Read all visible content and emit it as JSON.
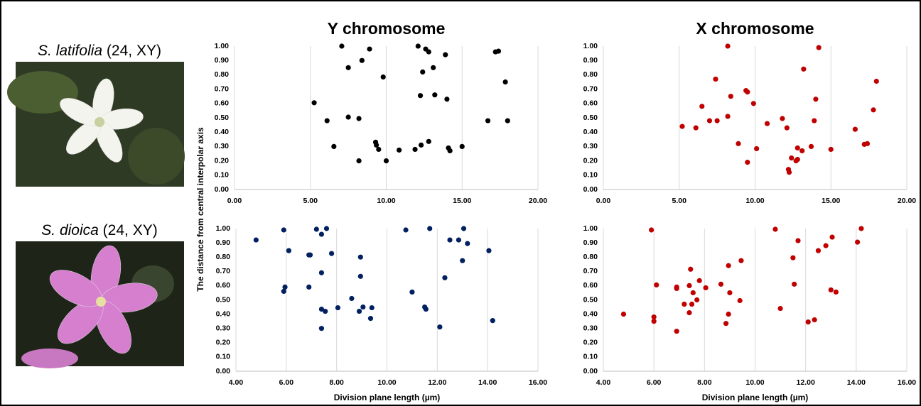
{
  "species": [
    {
      "name": "S. latifolia",
      "note": "(24, XY)"
    },
    {
      "name": "S. dioica",
      "note": "(24, XY)"
    }
  ],
  "chart_data": [
    {
      "type": "scatter",
      "title": "Y chromosome",
      "ylabel": "The distance from central interpolar axis",
      "color": "#000000",
      "xgrid": true,
      "xlim": [
        0,
        20
      ],
      "ylim": [
        0,
        1
      ],
      "xticks": [
        {
          "value": 0,
          "label": "0.00"
        },
        {
          "value": 5,
          "label": "5.00"
        },
        {
          "value": 10,
          "label": "10.00"
        },
        {
          "value": 15,
          "label": "15.00"
        },
        {
          "value": 20,
          "label": "20.00"
        }
      ],
      "yticks": [
        {
          "value": 0,
          "label": "0.00"
        },
        {
          "value": 0.1,
          "label": "0.10"
        },
        {
          "value": 0.2,
          "label": "0.20"
        },
        {
          "value": 0.3,
          "label": "0.30"
        },
        {
          "value": 0.4,
          "label": "0.40"
        },
        {
          "value": 0.5,
          "label": "0.50"
        },
        {
          "value": 0.6,
          "label": "0.60"
        },
        {
          "value": 0.7,
          "label": "0.70"
        },
        {
          "value": 0.8,
          "label": "0.80"
        },
        {
          "value": 0.9,
          "label": "0.90"
        },
        {
          "value": 1,
          "label": "1.00"
        }
      ],
      "x": [
        7.07,
        8.9,
        12.1,
        12.6,
        12.8,
        13.9,
        17.2,
        17.4,
        7.5,
        8.4,
        13.1,
        12.4,
        9.8,
        17.85,
        12.25,
        13.2,
        14.0,
        5.25,
        6.1,
        7.5,
        8.2,
        16.7,
        18.0,
        6.55,
        9.3,
        9.35,
        9.5,
        8.2,
        10.0,
        10.85,
        11.9,
        12.3,
        12.8,
        14.1,
        14.2,
        15.0
      ],
      "values": [
        1.0,
        0.98,
        1.0,
        0.98,
        0.96,
        0.94,
        0.96,
        0.965,
        0.85,
        0.9,
        0.85,
        0.82,
        0.785,
        0.75,
        0.655,
        0.66,
        0.63,
        0.605,
        0.48,
        0.505,
        0.495,
        0.48,
        0.48,
        0.3,
        0.33,
        0.31,
        0.28,
        0.2,
        0.2,
        0.275,
        0.28,
        0.31,
        0.335,
        0.29,
        0.27,
        0.3
      ]
    },
    {
      "type": "scatter",
      "title": "X chromosome",
      "color": "#c00000",
      "xgrid": true,
      "xlim": [
        0,
        20
      ],
      "ylim": [
        0,
        1
      ],
      "xticks": [
        {
          "value": 0,
          "label": "0.00"
        },
        {
          "value": 5,
          "label": "5.00"
        },
        {
          "value": 10,
          "label": "10.00"
        },
        {
          "value": 15,
          "label": "15.00"
        },
        {
          "value": 20,
          "label": "20.00"
        }
      ],
      "yticks": [
        {
          "value": 0,
          "label": "0.00"
        },
        {
          "value": 0.1,
          "label": "0.10"
        },
        {
          "value": 0.2,
          "label": "0.20"
        },
        {
          "value": 0.3,
          "label": "0.30"
        },
        {
          "value": 0.4,
          "label": "0.40"
        },
        {
          "value": 0.5,
          "label": "0.50"
        },
        {
          "value": 0.6,
          "label": "0.60"
        },
        {
          "value": 0.7,
          "label": "0.70"
        },
        {
          "value": 0.8,
          "label": "0.80"
        },
        {
          "value": 0.9,
          "label": "0.90"
        },
        {
          "value": 1,
          "label": "1.00"
        }
      ],
      "x": [
        8.2,
        14.2,
        7.4,
        13.2,
        18.0,
        9.4,
        9.5,
        8.4,
        14.0,
        6.5,
        9.9,
        17.8,
        5.2,
        6.1,
        7.0,
        7.5,
        8.2,
        10.8,
        11.8,
        12.1,
        13.9,
        16.6,
        8.9,
        10.1,
        9.5,
        12.4,
        12.7,
        12.8,
        12.8,
        13.1,
        13.7,
        15.0,
        17.2,
        17.4,
        12.2,
        12.25
      ],
      "values": [
        1.0,
        0.99,
        0.77,
        0.84,
        0.755,
        0.69,
        0.68,
        0.65,
        0.63,
        0.58,
        0.6,
        0.555,
        0.44,
        0.43,
        0.48,
        0.48,
        0.51,
        0.46,
        0.495,
        0.43,
        0.48,
        0.42,
        0.32,
        0.285,
        0.19,
        0.22,
        0.2,
        0.21,
        0.29,
        0.27,
        0.3,
        0.28,
        0.315,
        0.32,
        0.14,
        0.12
      ]
    },
    {
      "type": "scatter",
      "xlabel": "Division plane length (µm)",
      "color": "#002060",
      "xgrid": true,
      "xlim": [
        4,
        16
      ],
      "ylim": [
        0,
        1
      ],
      "xticks": [
        {
          "value": 4,
          "label": "4.00"
        },
        {
          "value": 6,
          "label": "6.00"
        },
        {
          "value": 8,
          "label": "8.00"
        },
        {
          "value": 10,
          "label": "10.00"
        },
        {
          "value": 12,
          "label": "12.00"
        },
        {
          "value": 14,
          "label": "14.00"
        },
        {
          "value": 16,
          "label": "16.00"
        }
      ],
      "yticks": [
        {
          "value": 0,
          "label": "0.00"
        },
        {
          "value": 0.1,
          "label": "0.10"
        },
        {
          "value": 0.2,
          "label": "0.20"
        },
        {
          "value": 0.3,
          "label": "0.30"
        },
        {
          "value": 0.4,
          "label": "0.40"
        },
        {
          "value": 0.5,
          "label": "0.50"
        },
        {
          "value": 0.6,
          "label": "0.60"
        },
        {
          "value": 0.7,
          "label": "0.70"
        },
        {
          "value": 0.8,
          "label": "0.80"
        },
        {
          "value": 0.9,
          "label": "0.90"
        },
        {
          "value": 1,
          "label": "1.00"
        }
      ],
      "x": [
        4.8,
        5.9,
        6.1,
        5.95,
        5.9,
        6.9,
        6.95,
        6.9,
        7.2,
        7.4,
        7.6,
        7.8,
        7.4,
        7.4,
        7.55,
        7.4,
        8.05,
        8.6,
        8.9,
        8.95,
        8.95,
        9.05,
        9.35,
        9.4,
        10.75,
        11.0,
        11.5,
        11.55,
        11.7,
        12.1,
        12.3,
        12.5,
        12.85,
        13.0,
        13.05,
        13.2,
        14.05,
        14.2
      ],
      "values": [
        0.92,
        0.99,
        0.845,
        0.59,
        0.56,
        0.815,
        0.815,
        0.59,
        0.995,
        0.96,
        1.0,
        0.825,
        0.69,
        0.435,
        0.42,
        0.3,
        0.445,
        0.51,
        0.42,
        0.8,
        0.665,
        0.45,
        0.37,
        0.445,
        0.99,
        0.555,
        0.45,
        0.435,
        1.0,
        0.31,
        0.655,
        0.92,
        0.92,
        0.775,
        1.0,
        0.895,
        0.845,
        0.355
      ]
    },
    {
      "type": "scatter",
      "xlabel": "Division plane length (µm)",
      "color": "#c00000",
      "xgrid": true,
      "xlim": [
        4,
        16
      ],
      "ylim": [
        0,
        1
      ],
      "xticks": [
        {
          "value": 4,
          "label": "4.00"
        },
        {
          "value": 6,
          "label": "6.00"
        },
        {
          "value": 8,
          "label": "8.00"
        },
        {
          "value": 10,
          "label": "10.00"
        },
        {
          "value": 12,
          "label": "12.00"
        },
        {
          "value": 14,
          "label": "14.00"
        },
        {
          "value": 16,
          "label": "16.00"
        }
      ],
      "yticks": [
        {
          "value": 0,
          "label": "0.00"
        },
        {
          "value": 0.1,
          "label": "0.10"
        },
        {
          "value": 0.2,
          "label": "0.20"
        },
        {
          "value": 0.3,
          "label": "0.30"
        },
        {
          "value": 0.4,
          "label": "0.40"
        },
        {
          "value": 0.5,
          "label": "0.50"
        },
        {
          "value": 0.6,
          "label": "0.60"
        },
        {
          "value": 0.7,
          "label": "0.70"
        },
        {
          "value": 0.8,
          "label": "0.80"
        },
        {
          "value": 0.9,
          "label": "0.90"
        },
        {
          "value": 1,
          "label": "1.00"
        }
      ],
      "x": [
        4.8,
        5.9,
        6.0,
        6.0,
        6.1,
        6.9,
        6.9,
        6.9,
        7.2,
        7.4,
        7.4,
        7.45,
        7.5,
        7.55,
        7.7,
        7.8,
        8.05,
        8.65,
        8.85,
        8.95,
        8.95,
        9.0,
        9.4,
        9.45,
        10.8,
        11.0,
        11.5,
        11.55,
        11.7,
        12.1,
        12.35,
        12.5,
        12.8,
        13.0,
        13.05,
        13.2,
        14.05,
        14.2
      ],
      "values": [
        0.4,
        0.99,
        0.35,
        0.38,
        0.605,
        0.28,
        0.58,
        0.59,
        0.47,
        0.41,
        0.6,
        0.715,
        0.47,
        0.55,
        0.5,
        0.635,
        0.585,
        0.61,
        0.335,
        0.4,
        0.74,
        0.55,
        0.495,
        0.775,
        0.995,
        0.44,
        0.795,
        0.61,
        0.915,
        0.345,
        0.36,
        0.845,
        0.88,
        0.57,
        0.94,
        0.555,
        0.905,
        1.0
      ]
    }
  ]
}
